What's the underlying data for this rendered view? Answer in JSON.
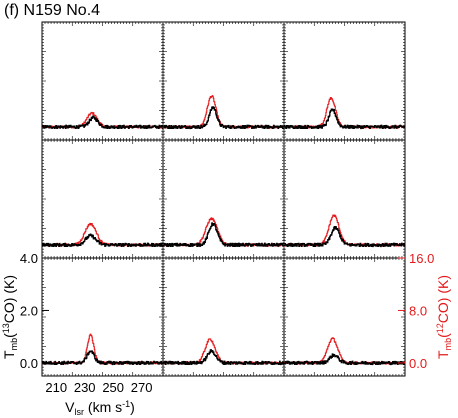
{
  "figure": {
    "title": "(f) N159 No.4"
  },
  "colors": {
    "co13": "#000000",
    "co12": "#e41a1c",
    "frame": "#000000",
    "divider": "#555555"
  },
  "chart_data": {
    "type": "line",
    "grid_rows": 3,
    "grid_cols": 3,
    "grid": false,
    "xlabel": {
      "base": "V",
      "sub": "lsr",
      "unit": " (km s",
      "sup": "-1",
      "close": ")"
    },
    "ylabel_left": {
      "base": "T",
      "sub": "mb",
      "open": "(",
      "iso": "13",
      "species": "CO) (K)"
    },
    "ylabel_right": {
      "base": "T",
      "sub": "mb",
      "open": "(",
      "iso": "12",
      "species": "CO) (K)"
    },
    "xlim": [
      200,
      285
    ],
    "ylim_left": [
      -0.5,
      4.0
    ],
    "ylim_right": [
      -2.0,
      16.0
    ],
    "x_tick_labels": [
      "210",
      "230",
      "250",
      "270"
    ],
    "x_tick_values": [
      210,
      230,
      250,
      270
    ],
    "y_left_tick_labels": [
      "0.0",
      "2.0",
      "4.0"
    ],
    "y_left_tick_values": [
      0,
      2,
      4
    ],
    "y_right_tick_labels": [
      "0.0",
      "8.0",
      "16.0"
    ],
    "y_right_tick_values": [
      0,
      8,
      16
    ],
    "series_units": {
      "co12": "K (right axis)",
      "co13": "K (left axis)"
    },
    "panels": [
      {
        "row": 0,
        "col": 0,
        "co12": {
          "center": 235,
          "width": 3.5,
          "peak": 2.1
        },
        "co13": {
          "center": 236,
          "width": 3.0,
          "peak": 0.35
        }
      },
      {
        "row": 0,
        "col": 1,
        "co12": {
          "center": 234,
          "width": 3.0,
          "peak": 4.7
        },
        "co13": {
          "center": 235,
          "width": 2.5,
          "peak": 0.75
        }
      },
      {
        "row": 0,
        "col": 2,
        "co12": {
          "center": 233,
          "width": 3.0,
          "peak": 4.4
        },
        "co13": {
          "center": 234,
          "width": 2.5,
          "peak": 0.65
        }
      },
      {
        "row": 1,
        "col": 0,
        "co12": {
          "center": 234,
          "width": 4.0,
          "peak": 3.2
        },
        "co13": {
          "center": 234,
          "width": 3.5,
          "peak": 0.35
        }
      },
      {
        "row": 1,
        "col": 1,
        "co12": {
          "center": 234,
          "width": 4.0,
          "peak": 4.0
        },
        "co13": {
          "center": 235,
          "width": 3.0,
          "peak": 0.8
        }
      },
      {
        "row": 1,
        "col": 2,
        "co12": {
          "center": 235,
          "width": 3.5,
          "peak": 4.5
        },
        "co13": {
          "center": 236,
          "width": 3.0,
          "peak": 0.65
        }
      },
      {
        "row": 2,
        "col": 0,
        "co12": {
          "center": 234,
          "width": 2.2,
          "peak": 4.3
        },
        "co13": {
          "center": 234,
          "width": 2.5,
          "peak": 0.45
        }
      },
      {
        "row": 2,
        "col": 1,
        "co12": {
          "center": 233,
          "width": 3.5,
          "peak": 3.6
        },
        "co13": {
          "center": 234,
          "width": 3.0,
          "peak": 0.45
        }
      },
      {
        "row": 2,
        "col": 2,
        "co12": {
          "center": 234,
          "width": 3.5,
          "peak": 3.7
        },
        "co13": {
          "center": 235,
          "width": 3.0,
          "peak": 0.3
        }
      }
    ]
  }
}
